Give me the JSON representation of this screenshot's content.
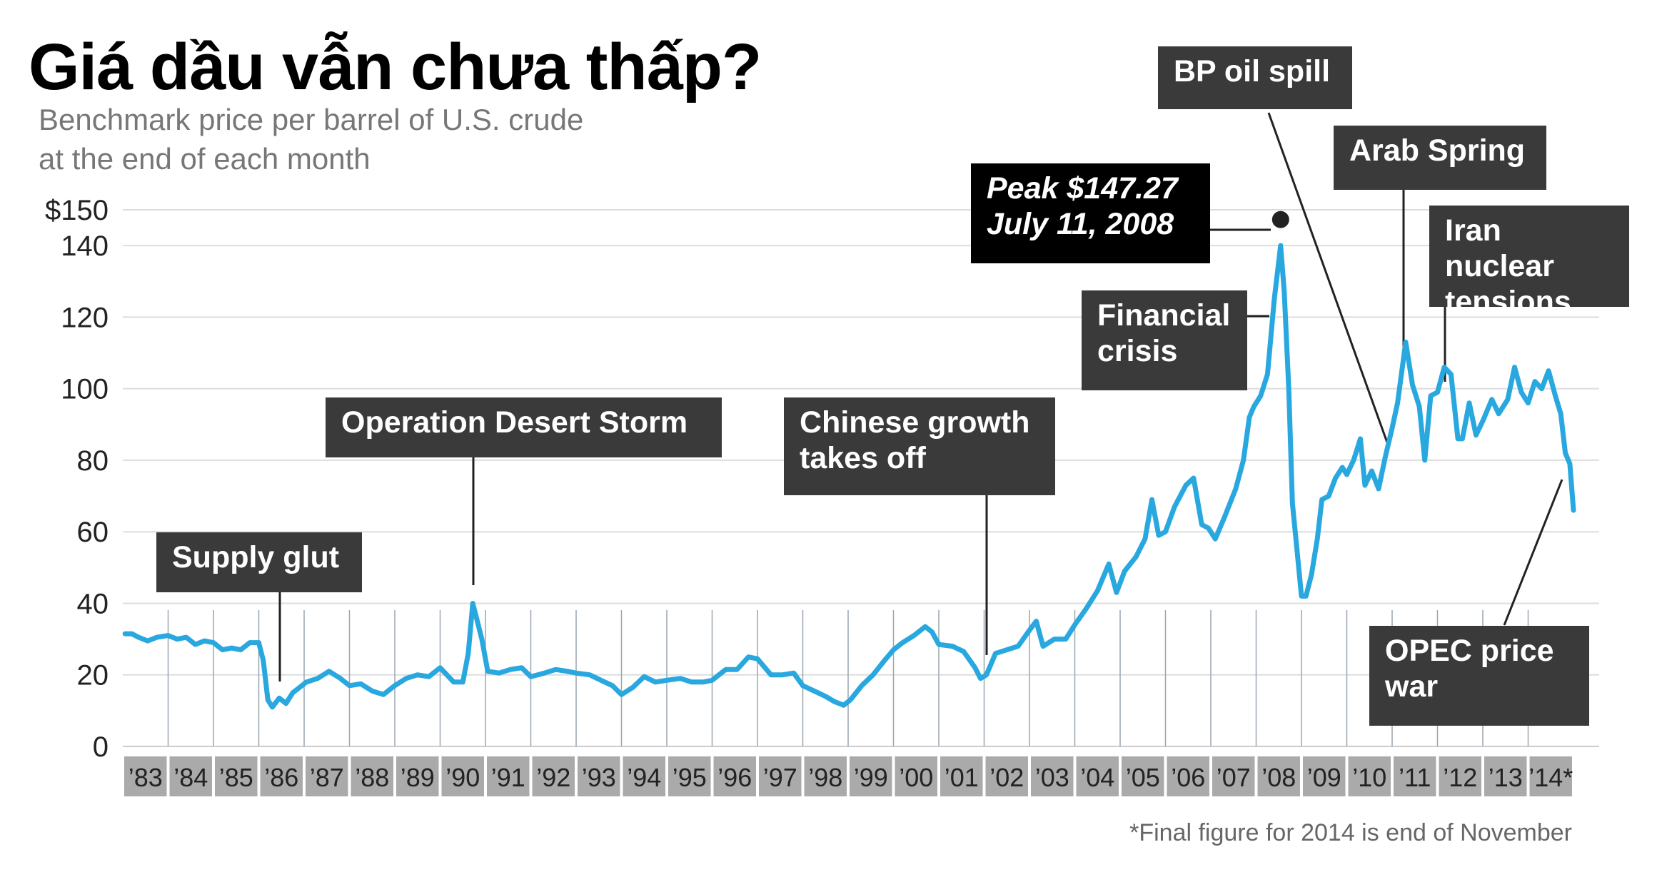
{
  "title": "Giá dầu vẫn chưa thấp?",
  "subtitle_line1": "Benchmark price per barrel of U.S. crude",
  "subtitle_line2": "at the end of each month",
  "footnote": "*Final figure for 2014 is end of November",
  "colors": {
    "line": "#29a8e0",
    "annotation_box": "#3a3a3a",
    "peak_box": "#000000",
    "year_band": "#aaaaaa",
    "grid": "#dddddd"
  },
  "annotations": {
    "supply_glut": "Supply glut",
    "desert_storm": "Operation Desert Storm",
    "chinese_growth": "Chinese growth\ntakes off",
    "financial_crisis": "Financial\ncrisis",
    "peak": "Peak $147.27\nJuly 11, 2008",
    "bp_oil_spill": "BP oil spill",
    "arab_spring": "Arab Spring",
    "iran": "Iran nuclear\ntensions",
    "opec": "OPEC price\nwar"
  },
  "chart_data": {
    "type": "line",
    "title": "Giá dầu vẫn chưa thấp?",
    "ylabel": "",
    "xlabel": "",
    "ylim": [
      0,
      150
    ],
    "y_ticks": [
      0,
      20,
      40,
      60,
      80,
      100,
      120,
      140,
      150
    ],
    "y_tick_labels": [
      "0",
      "20",
      "40",
      "60",
      "80",
      "100",
      "120",
      "140",
      "$150"
    ],
    "x_tick_labels": [
      "’83",
      "’84",
      "’85",
      "’86",
      "’87",
      "’88",
      "’89",
      "’90",
      "’91",
      "’92",
      "’93",
      "’94",
      "’95",
      "’96",
      "’97",
      "’98",
      "’99",
      "’00",
      "’01",
      "’02",
      "’03",
      "’04",
      "’05",
      "’06",
      "’07",
      "’08",
      "’09",
      "’10",
      "’11",
      "’12",
      "’13",
      "’14*"
    ],
    "xlim": [
      1983.0,
      2015.0
    ],
    "grid": true,
    "peak_point": {
      "x": 2008.54,
      "y": 147.27
    },
    "series": [
      {
        "points": [
          [
            1983.05,
            31.5
          ],
          [
            1983.2,
            31.5
          ],
          [
            1983.35,
            30.5
          ],
          [
            1983.55,
            29.5
          ],
          [
            1983.75,
            30.5
          ],
          [
            1984.0,
            31.0
          ],
          [
            1984.2,
            30.0
          ],
          [
            1984.4,
            30.5
          ],
          [
            1984.6,
            28.5
          ],
          [
            1984.8,
            29.5
          ],
          [
            1985.0,
            29.0
          ],
          [
            1985.2,
            27.0
          ],
          [
            1985.4,
            27.5
          ],
          [
            1985.6,
            27.0
          ],
          [
            1985.8,
            29.0
          ],
          [
            1986.0,
            29.0
          ],
          [
            1986.1,
            24.0
          ],
          [
            1986.2,
            13.0
          ],
          [
            1986.3,
            11.0
          ],
          [
            1986.45,
            13.5
          ],
          [
            1986.6,
            12.0
          ],
          [
            1986.75,
            15.0
          ],
          [
            1986.9,
            16.5
          ],
          [
            1987.05,
            18.0
          ],
          [
            1987.3,
            19.0
          ],
          [
            1987.55,
            21.0
          ],
          [
            1987.8,
            19.0
          ],
          [
            1988.0,
            17.0
          ],
          [
            1988.25,
            17.5
          ],
          [
            1988.5,
            15.5
          ],
          [
            1988.75,
            14.5
          ],
          [
            1989.0,
            17.0
          ],
          [
            1989.25,
            19.0
          ],
          [
            1989.5,
            20.0
          ],
          [
            1989.75,
            19.5
          ],
          [
            1990.0,
            22.0
          ],
          [
            1990.3,
            18.0
          ],
          [
            1990.5,
            18.0
          ],
          [
            1990.62,
            26.0
          ],
          [
            1990.72,
            40.0
          ],
          [
            1990.82,
            35.0
          ],
          [
            1990.92,
            30.0
          ],
          [
            1991.05,
            21.0
          ],
          [
            1991.3,
            20.5
          ],
          [
            1991.55,
            21.5
          ],
          [
            1991.8,
            22.0
          ],
          [
            1992.0,
            19.5
          ],
          [
            1992.3,
            20.5
          ],
          [
            1992.55,
            21.5
          ],
          [
            1992.8,
            21.0
          ],
          [
            1993.0,
            20.5
          ],
          [
            1993.3,
            20.0
          ],
          [
            1993.55,
            18.5
          ],
          [
            1993.8,
            17.0
          ],
          [
            1994.0,
            14.5
          ],
          [
            1994.25,
            16.5
          ],
          [
            1994.5,
            19.5
          ],
          [
            1994.75,
            18.0
          ],
          [
            1995.0,
            18.5
          ],
          [
            1995.3,
            19.0
          ],
          [
            1995.55,
            18.0
          ],
          [
            1995.8,
            18.0
          ],
          [
            1996.0,
            18.5
          ],
          [
            1996.3,
            21.5
          ],
          [
            1996.55,
            21.5
          ],
          [
            1996.8,
            25.0
          ],
          [
            1997.0,
            24.5
          ],
          [
            1997.3,
            20.0
          ],
          [
            1997.55,
            20.0
          ],
          [
            1997.8,
            20.5
          ],
          [
            1998.0,
            17.0
          ],
          [
            1998.25,
            15.5
          ],
          [
            1998.5,
            14.0
          ],
          [
            1998.7,
            12.5
          ],
          [
            1998.9,
            11.5
          ],
          [
            1999.05,
            13.0
          ],
          [
            1999.3,
            17.0
          ],
          [
            1999.55,
            20.0
          ],
          [
            1999.8,
            24.0
          ],
          [
            2000.0,
            27.0
          ],
          [
            2000.2,
            29.0
          ],
          [
            2000.45,
            31.0
          ],
          [
            2000.7,
            33.5
          ],
          [
            2000.85,
            32.0
          ],
          [
            2001.0,
            28.5
          ],
          [
            2001.3,
            28.0
          ],
          [
            2001.55,
            26.5
          ],
          [
            2001.8,
            22.0
          ],
          [
            2001.92,
            19.0
          ],
          [
            2002.05,
            20.0
          ],
          [
            2002.25,
            26.0
          ],
          [
            2002.5,
            27.0
          ],
          [
            2002.75,
            28.0
          ],
          [
            2003.0,
            32.5
          ],
          [
            2003.15,
            35.0
          ],
          [
            2003.3,
            28.0
          ],
          [
            2003.55,
            30.0
          ],
          [
            2003.8,
            30.0
          ],
          [
            2004.0,
            34.0
          ],
          [
            2004.25,
            38.5
          ],
          [
            2004.5,
            43.5
          ],
          [
            2004.75,
            51.0
          ],
          [
            2004.92,
            43.0
          ],
          [
            2005.1,
            49.0
          ],
          [
            2005.35,
            53.0
          ],
          [
            2005.55,
            58.0
          ],
          [
            2005.7,
            69.0
          ],
          [
            2005.85,
            59.0
          ],
          [
            2006.0,
            60.0
          ],
          [
            2006.2,
            67.0
          ],
          [
            2006.45,
            73.0
          ],
          [
            2006.62,
            75.0
          ],
          [
            2006.8,
            62.0
          ],
          [
            2006.95,
            61.0
          ],
          [
            2007.1,
            58.0
          ],
          [
            2007.3,
            64.0
          ],
          [
            2007.55,
            72.0
          ],
          [
            2007.72,
            80.0
          ],
          [
            2007.85,
            92.0
          ],
          [
            2007.95,
            95.0
          ],
          [
            2008.1,
            98.0
          ],
          [
            2008.25,
            104.0
          ],
          [
            2008.4,
            125.0
          ],
          [
            2008.54,
            140.0
          ],
          [
            2008.62,
            127.0
          ],
          [
            2008.72,
            100.0
          ],
          [
            2008.8,
            68.0
          ],
          [
            2008.9,
            55.0
          ],
          [
            2009.0,
            42.0
          ],
          [
            2009.1,
            42.0
          ],
          [
            2009.22,
            48.0
          ],
          [
            2009.35,
            58.0
          ],
          [
            2009.45,
            69.0
          ],
          [
            2009.6,
            70.0
          ],
          [
            2009.75,
            75.0
          ],
          [
            2009.9,
            78.0
          ],
          [
            2010.0,
            76.0
          ],
          [
            2010.15,
            80.0
          ],
          [
            2010.3,
            86.0
          ],
          [
            2010.4,
            73.0
          ],
          [
            2010.55,
            77.0
          ],
          [
            2010.7,
            72.0
          ],
          [
            2010.85,
            81.0
          ],
          [
            2011.0,
            89.0
          ],
          [
            2011.12,
            96.0
          ],
          [
            2011.3,
            113.0
          ],
          [
            2011.45,
            101.0
          ],
          [
            2011.6,
            95.0
          ],
          [
            2011.72,
            80.0
          ],
          [
            2011.85,
            98.0
          ],
          [
            2012.0,
            99.0
          ],
          [
            2012.15,
            106.0
          ],
          [
            2012.3,
            104.0
          ],
          [
            2012.45,
            86.0
          ],
          [
            2012.55,
            86.0
          ],
          [
            2012.7,
            96.0
          ],
          [
            2012.85,
            87.0
          ],
          [
            2013.0,
            91.0
          ],
          [
            2013.2,
            97.0
          ],
          [
            2013.35,
            93.0
          ],
          [
            2013.55,
            97.0
          ],
          [
            2013.7,
            106.0
          ],
          [
            2013.85,
            99.0
          ],
          [
            2014.0,
            96.0
          ],
          [
            2014.15,
            102.0
          ],
          [
            2014.3,
            100.0
          ],
          [
            2014.45,
            105.0
          ],
          [
            2014.6,
            98.0
          ],
          [
            2014.72,
            93.0
          ],
          [
            2014.82,
            82.0
          ],
          [
            2014.92,
            79.0
          ],
          [
            2015.0,
            66.0
          ]
        ]
      }
    ]
  }
}
